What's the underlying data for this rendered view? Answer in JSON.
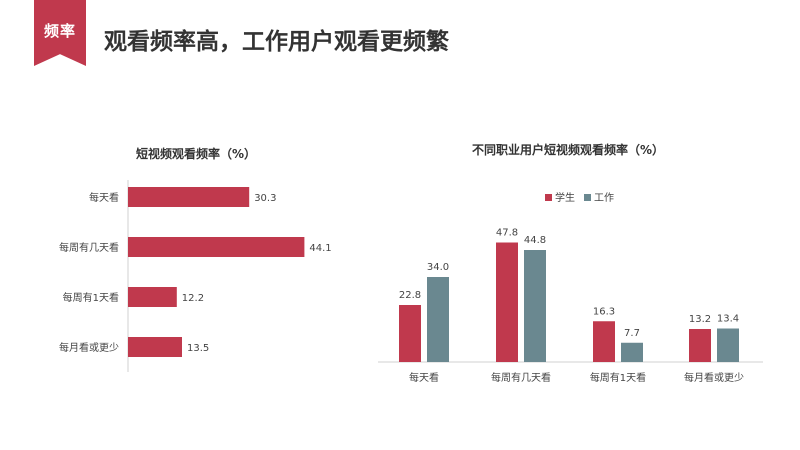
{
  "header": {
    "badge": "频率",
    "title": "观看频率高，工作用户观看更频繁"
  },
  "colors": {
    "brand": "#c0394d",
    "student": "#c0394d",
    "work": "#6a8890",
    "axis": "#d0d0d0"
  },
  "chart_data": [
    {
      "type": "bar",
      "orientation": "horizontal",
      "title": "短视频观看频率（%）",
      "categories": [
        "每天看",
        "每周有几天看",
        "每周有1天看",
        "每月看或更少"
      ],
      "values": [
        30.3,
        44.1,
        12.2,
        13.5
      ],
      "value_labels": [
        "30.3",
        "44.1",
        "12.2",
        "13.5"
      ],
      "xlim": [
        0,
        50
      ],
      "grid": false,
      "legend": "none"
    },
    {
      "type": "bar",
      "orientation": "vertical",
      "title": "不同职业用户短视频观看频率（%）",
      "categories": [
        "每天看",
        "每周有几天看",
        "每周有1天看",
        "每月看或更少"
      ],
      "series": [
        {
          "name": "学生",
          "values": [
            22.8,
            47.8,
            16.3,
            13.2
          ],
          "labels": [
            "22.8",
            "47.8",
            "16.3",
            "13.2"
          ]
        },
        {
          "name": "工作",
          "values": [
            34.0,
            44.8,
            7.7,
            13.4
          ],
          "labels": [
            "34.0",
            "44.8",
            "7.7",
            "13.4"
          ]
        }
      ],
      "ylim": [
        0,
        50
      ],
      "grid": false,
      "legend": "top"
    }
  ]
}
